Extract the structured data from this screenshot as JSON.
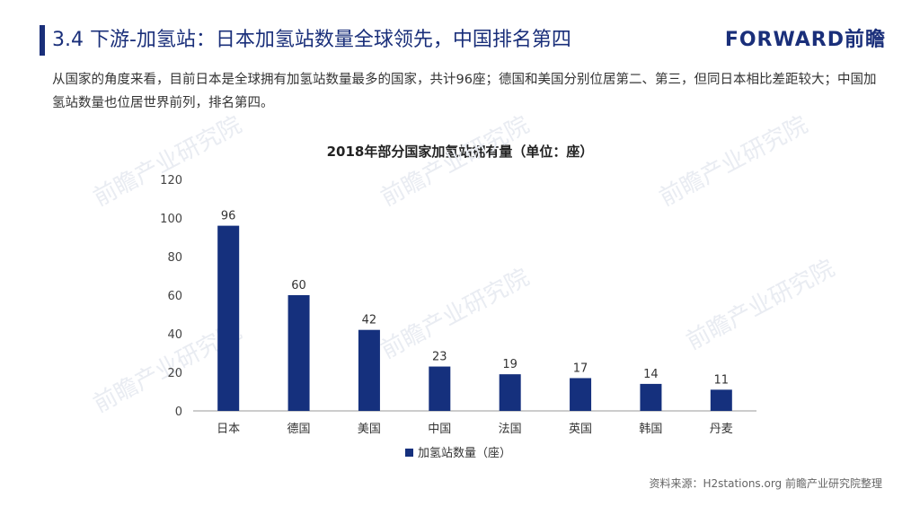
{
  "header": {
    "title": "3.4 下游-加氢站：日本加氢站数量全球领先，中国排名第四",
    "brand": "FORWARD前瞻"
  },
  "intro_text": "从国家的角度来看，目前日本是全球拥有加氢站数量最多的国家，共计96座；德国和美国分别位居第二、第三，但同日本相比差距较大；中国加氢站数量也位居世界前列，排名第四。",
  "watermark": "前瞻产业研究院",
  "source": "资料来源：H2stations.org 前瞻产业研究院整理",
  "colors": {
    "accent": "#1a2f7a",
    "bar": "#15307d",
    "axis": "#999999"
  },
  "chart_data": {
    "type": "bar",
    "title": "2018年部分国家加氢站拥有量（单位：座）",
    "categories": [
      "日本",
      "德国",
      "美国",
      "中国",
      "法国",
      "英国",
      "韩国",
      "丹麦"
    ],
    "series": [
      {
        "name": "加氢站数量（座）",
        "values": [
          96,
          60,
          42,
          23,
          19,
          17,
          14,
          11
        ]
      }
    ],
    "yticks": [
      "0",
      "20",
      "40",
      "60",
      "80",
      "100",
      "120"
    ],
    "ylim": [
      0,
      120
    ],
    "legend_position": "bottom",
    "grid": false,
    "data_labels": true
  }
}
